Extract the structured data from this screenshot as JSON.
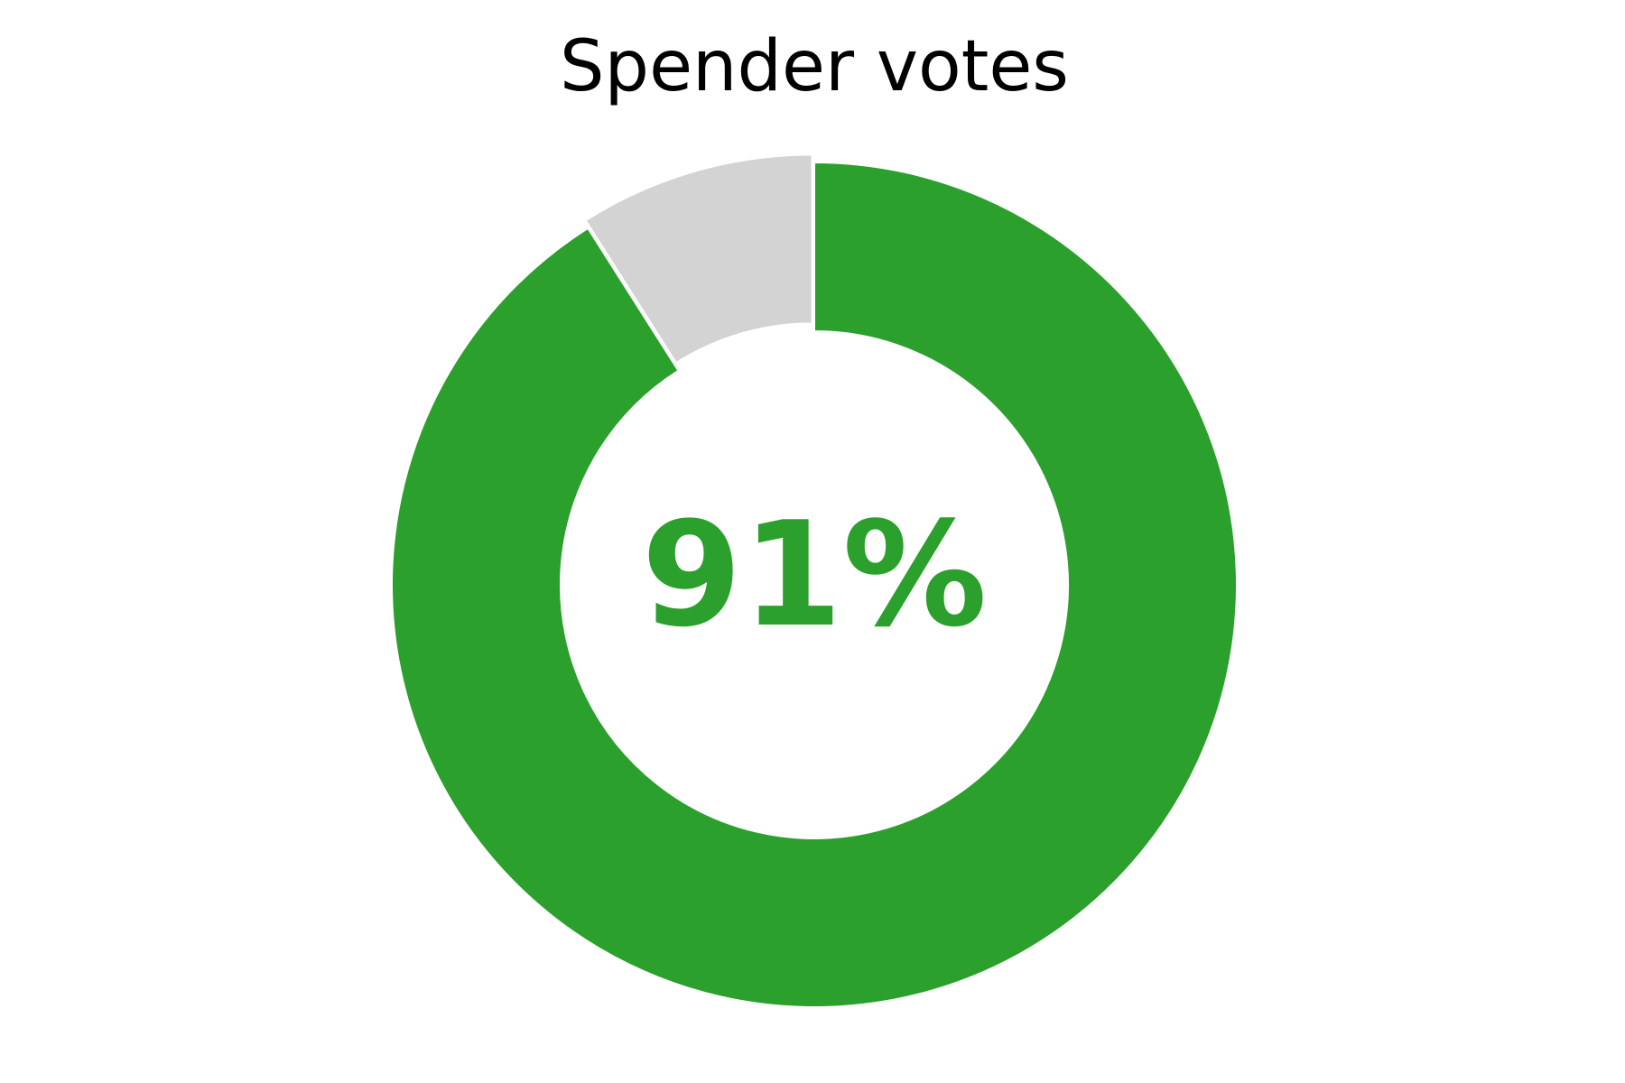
{
  "chart_data": {
    "type": "pie",
    "style": "donut",
    "title": "Spender votes",
    "slices": [
      {
        "value": 91,
        "color": "#2ca02c"
      },
      {
        "value": 9,
        "color": "#d3d3d3"
      }
    ],
    "center_label": "91%",
    "center_label_color": "#2ca02c",
    "highlighted_slice_offset": true
  }
}
